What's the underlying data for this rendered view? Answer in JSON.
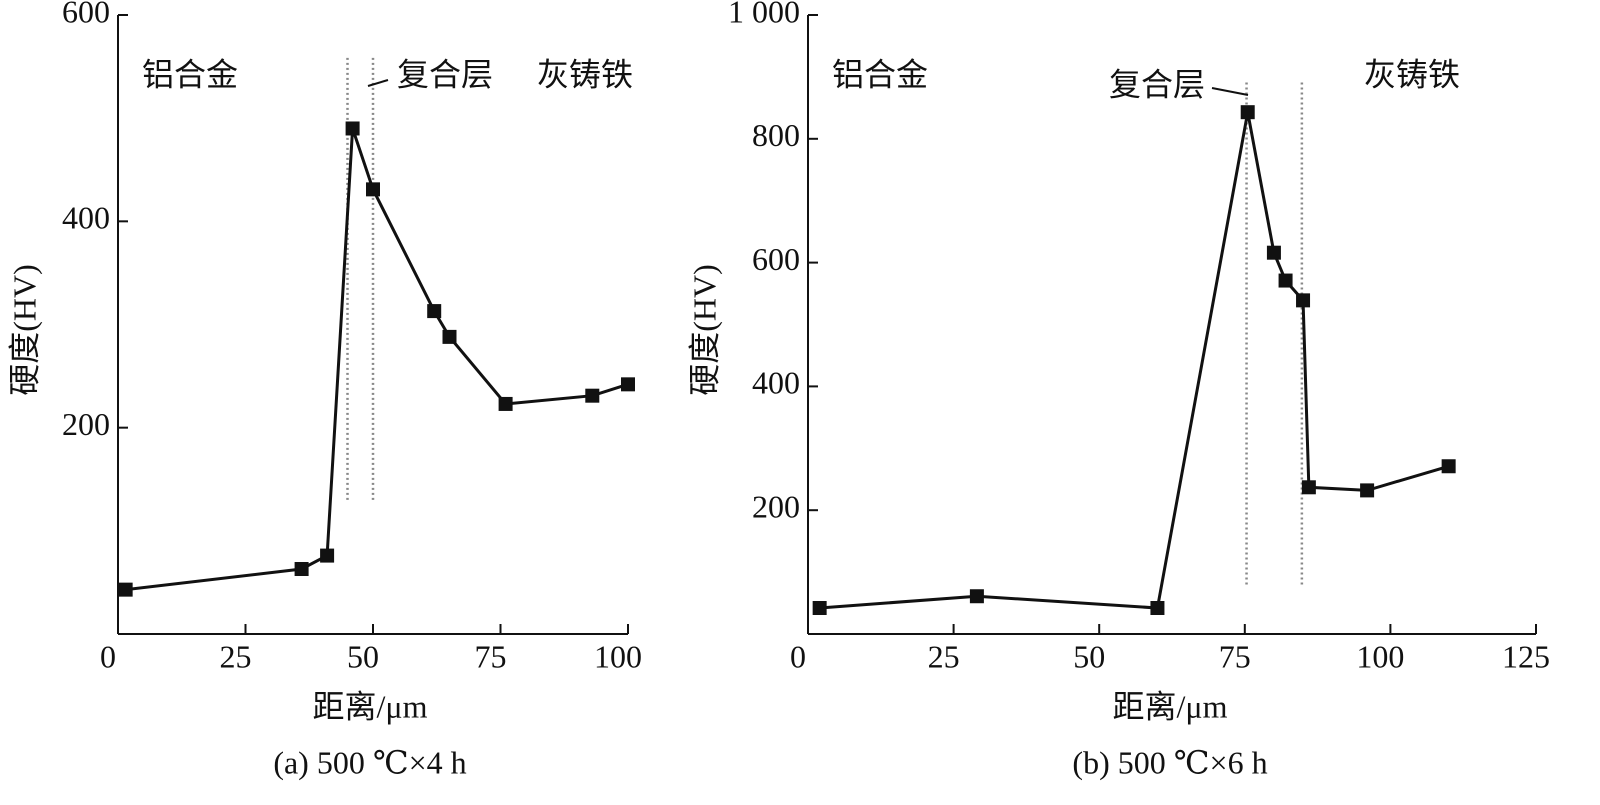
{
  "chart_data": [
    {
      "type": "line",
      "caption": "(a) 500 ℃×4 h",
      "xlabel": "距离/μm",
      "ylabel": "硬度(HV)",
      "xlim": [
        0,
        100
      ],
      "xticks": [
        0,
        25,
        50,
        75,
        100
      ],
      "ylim": [
        0,
        600
      ],
      "yticks": [
        200,
        400,
        600
      ],
      "x": [
        1.5,
        36,
        41,
        46,
        50,
        62,
        65,
        76,
        93,
        100
      ],
      "series": [
        {
          "color": "#111111",
          "values": [
            43,
            63,
            76,
            490,
            431,
            313,
            288,
            223,
            231,
            242
          ]
        }
      ],
      "boundaries": [
        45,
        50
      ],
      "annotations": [
        "铝合金",
        "复合层",
        "灰铸铁"
      ]
    },
    {
      "type": "line",
      "caption": "(b) 500 ℃×6 h",
      "xlabel": "距离/μm",
      "ylabel": "硬度(HV)",
      "xlim": [
        0,
        125
      ],
      "xticks": [
        0,
        25,
        50,
        75,
        100,
        125
      ],
      "ylim": [
        0,
        1000
      ],
      "yticks": [
        200,
        400,
        600,
        800,
        {
          "value": 1000,
          "label": "1 000"
        }
      ],
      "x": [
        2,
        29,
        60,
        75.5,
        80,
        82,
        85,
        86,
        96,
        110
      ],
      "series": [
        {
          "color": "#111111",
          "values": [
            42,
            61,
            42,
            843,
            616,
            571,
            539,
            237,
            232,
            271
          ]
        }
      ],
      "boundaries": [
        75.3,
        84.8
      ],
      "annotations": [
        "铝合金",
        "复合层",
        "灰铸铁"
      ]
    }
  ]
}
